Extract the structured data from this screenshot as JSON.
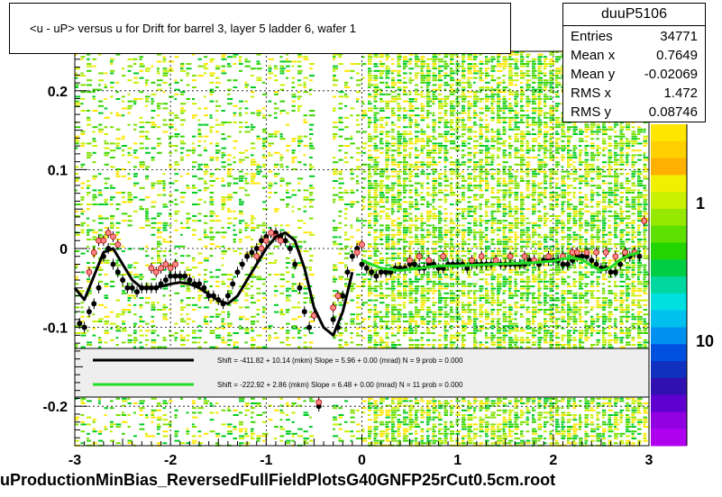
{
  "title": "<u - uP>       versus   u for Drift for barrel 3, layer 5 ladder 6, wafer 1",
  "footer": "uProductionMinBias_ReversedFullFieldPlotsG40GNFP25rCut0.5cm.root",
  "stats": {
    "name": "duuP5106",
    "rows": [
      {
        "key": "Entries",
        "value": "34771"
      },
      {
        "key": "Mean x",
        "value": "0.7649"
      },
      {
        "key": "Mean y",
        "value": "-0.02069"
      },
      {
        "key": "RMS x",
        "value": "1.472"
      },
      {
        "key": "RMS y",
        "value": "0.08746"
      }
    ]
  },
  "colors": {
    "black_fit": "#000000",
    "green_fit": "#22dd22",
    "pink_marker": "#ff8888",
    "legend_bg": "#eeeeee"
  },
  "chart_data": {
    "type": "scatter",
    "xlim": [
      -3,
      3
    ],
    "ylim": [
      -0.25,
      0.25
    ],
    "x_ticks": [
      "-3",
      "-2",
      "-1",
      "0",
      "1",
      "2",
      "3"
    ],
    "y_ticks": [
      "-0.2",
      "-0.1",
      "0",
      "0.1",
      "0.2"
    ],
    "z_ticks": [
      "1",
      "10"
    ],
    "grid": true,
    "legend": [
      {
        "text": "Shift =  -411.82 + 10.14 (mkm) Slope =      5.96 + 0.00 (mrad)  N = 9 prob = 0.000",
        "color": "#000000"
      },
      {
        "text": "Shift =  -222.92 + 2.86 (mkm) Slope =      6.48 + 0.00 (mrad)  N = 11 prob = 0.000",
        "color": "#22dd22"
      }
    ],
    "series": [
      {
        "color": "#000000",
        "x": [
          -2.95,
          -2.9,
          -2.85,
          -2.8,
          -2.75,
          -2.7,
          -2.65,
          -2.6,
          -2.55,
          -2.5,
          -2.45,
          -2.4,
          -2.35,
          -2.3,
          -2.25,
          -2.2,
          -2.15,
          -2.1,
          -2.05,
          -2.0,
          -1.95,
          -1.9,
          -1.85,
          -1.8,
          -1.75,
          -1.7,
          -1.65,
          -1.6,
          -1.55,
          -1.5,
          -1.45,
          -1.4,
          -1.35,
          -1.3,
          -1.25,
          -1.2,
          -1.15,
          -1.1,
          -1.05,
          -1.0,
          -0.95,
          -0.9,
          -0.85,
          -0.8,
          -0.75,
          -0.7,
          -0.65,
          -0.6,
          -0.55,
          -0.45,
          -0.4,
          -0.3,
          -0.25,
          -0.2,
          -0.15,
          -0.1,
          -0.05,
          0.0,
          0.05,
          0.1,
          0.15,
          0.2,
          0.25,
          0.3,
          0.35,
          0.4,
          0.45,
          0.5,
          0.55,
          0.6,
          0.65,
          0.7,
          0.75,
          0.8,
          0.85,
          0.9,
          0.95,
          1.0,
          1.05,
          1.1,
          1.15,
          1.2,
          1.25,
          1.3,
          1.35,
          1.4,
          1.45,
          1.5,
          1.55,
          1.6,
          1.65,
          1.7,
          1.75,
          1.8,
          1.85,
          1.9,
          1.95,
          2.0,
          2.05,
          2.1,
          2.15,
          2.2,
          2.25,
          2.3,
          2.35,
          2.4,
          2.45,
          2.5,
          2.55,
          2.6,
          2.65,
          2.7,
          2.75,
          2.8,
          2.85,
          2.9
        ],
        "y": [
          -0.095,
          -0.1,
          -0.08,
          -0.07,
          -0.05,
          -0.01,
          0.0,
          -0.02,
          -0.03,
          -0.04,
          -0.05,
          -0.05,
          -0.055,
          -0.05,
          -0.05,
          -0.05,
          -0.05,
          -0.045,
          -0.04,
          -0.035,
          -0.035,
          -0.035,
          -0.035,
          -0.04,
          -0.045,
          -0.045,
          -0.05,
          -0.06,
          -0.06,
          -0.065,
          -0.07,
          -0.06,
          -0.045,
          -0.03,
          -0.02,
          -0.01,
          -0.005,
          0.0,
          0.01,
          0.015,
          0.02,
          0.02,
          0.015,
          0.01,
          0.0,
          -0.02,
          -0.05,
          -0.08,
          -0.1,
          -0.2,
          -0.18,
          -0.09,
          -0.1,
          -0.06,
          -0.03,
          -0.01,
          0.0,
          -0.02,
          -0.025,
          -0.03,
          -0.035,
          -0.03,
          -0.03,
          -0.03,
          -0.025,
          -0.025,
          -0.025,
          -0.02,
          -0.02,
          -0.025,
          -0.025,
          -0.02,
          -0.02,
          -0.025,
          -0.025,
          -0.02,
          -0.02,
          -0.02,
          -0.02,
          -0.025,
          -0.02,
          -0.02,
          -0.02,
          -0.02,
          -0.02,
          -0.015,
          -0.02,
          -0.02,
          -0.02,
          -0.02,
          -0.02,
          -0.02,
          -0.015,
          -0.015,
          -0.02,
          -0.015,
          -0.015,
          -0.015,
          -0.015,
          -0.02,
          -0.02,
          -0.015,
          -0.01,
          -0.01,
          -0.01,
          -0.015,
          -0.02,
          -0.025,
          -0.025,
          -0.03,
          -0.03,
          -0.02,
          -0.01,
          -0.01,
          -0.005,
          -0.01
        ]
      },
      {
        "color": "#ff8888",
        "x": [
          -2.85,
          -2.8,
          -2.75,
          -2.7,
          -2.65,
          -2.6,
          -2.55,
          -2.2,
          -2.15,
          -2.1,
          -2.05,
          -2.0,
          -1.95,
          -1.1,
          -1.05,
          -1.0,
          -0.95,
          -0.9,
          -0.85,
          -0.5,
          -0.45,
          -0.3,
          -0.25,
          -0.05,
          0.0,
          0.5,
          0.6,
          0.7,
          0.85,
          1.15,
          1.25,
          1.4,
          1.55,
          1.7,
          1.8,
          1.95,
          2.1,
          2.2,
          2.25,
          2.35,
          2.45,
          2.55,
          2.65,
          2.75,
          2.85,
          2.95
        ],
        "y": [
          -0.03,
          -0.005,
          0.01,
          0.01,
          0.02,
          0.015,
          0.005,
          -0.025,
          -0.03,
          -0.025,
          -0.02,
          -0.025,
          -0.02,
          -0.01,
          0.0,
          0.01,
          0.02,
          0.015,
          0.01,
          -0.085,
          -0.195,
          -0.075,
          -0.06,
          -0.005,
          0.005,
          -0.015,
          -0.01,
          -0.015,
          -0.01,
          -0.015,
          -0.01,
          -0.015,
          -0.01,
          -0.01,
          -0.015,
          -0.01,
          -0.01,
          -0.005,
          -0.005,
          -0.005,
          -0.005,
          -0.005,
          -0.01,
          -0.005,
          -0.005,
          0.035
        ]
      }
    ],
    "fit_curves": [
      {
        "color": "#000000",
        "x": [
          -3.0,
          -2.9,
          -2.8,
          -2.7,
          -2.6,
          -2.5,
          -2.4,
          -2.3,
          -2.2,
          -2.1,
          -2.0,
          -1.9,
          -1.8,
          -1.7,
          -1.6,
          -1.5,
          -1.4,
          -1.3,
          -1.2,
          -1.1,
          -1.0,
          -0.9,
          -0.8,
          -0.7,
          -0.6,
          -0.5,
          -0.4,
          -0.3,
          -0.2,
          -0.1
        ],
        "y": [
          -0.05,
          -0.065,
          -0.035,
          -0.005,
          0.0,
          -0.02,
          -0.04,
          -0.05,
          -0.05,
          -0.048,
          -0.045,
          -0.043,
          -0.045,
          -0.05,
          -0.058,
          -0.066,
          -0.07,
          -0.06,
          -0.04,
          -0.02,
          0.0,
          0.015,
          0.02,
          0.01,
          -0.025,
          -0.075,
          -0.1,
          -0.11,
          -0.08,
          -0.03
        ]
      },
      {
        "color": "#22dd22",
        "x": [
          0.0,
          0.2,
          0.4,
          0.6,
          0.8,
          1.0,
          1.2,
          1.4,
          1.6,
          1.8,
          2.0,
          2.1,
          2.2,
          2.3,
          2.4,
          2.5,
          2.6,
          2.7,
          2.8,
          2.9
        ],
        "y": [
          -0.015,
          -0.025,
          -0.028,
          -0.025,
          -0.022,
          -0.022,
          -0.021,
          -0.02,
          -0.019,
          -0.018,
          -0.016,
          -0.013,
          -0.012,
          -0.014,
          -0.022,
          -0.028,
          -0.024,
          -0.014,
          -0.008,
          -0.005
        ]
      }
    ]
  }
}
